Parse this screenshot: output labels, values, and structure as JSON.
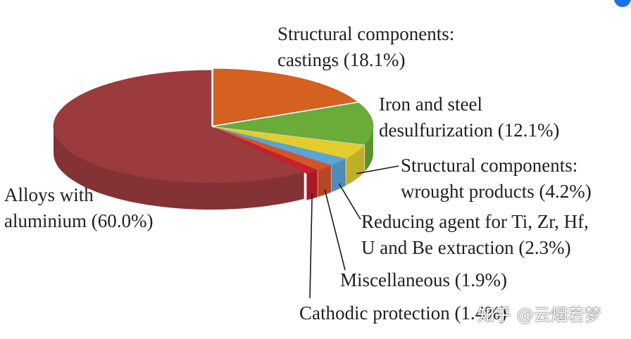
{
  "chart_data": {
    "type": "pie",
    "style": "3d-exploded",
    "title": "",
    "slices": [
      {
        "name": "Structural components: castings",
        "value": 18.1,
        "label_lines": [
          "Structural components:",
          "castings (18.1%)"
        ],
        "color": "#d4611f"
      },
      {
        "name": "Iron and steel desulfurization",
        "value": 12.1,
        "label_lines": [
          "Iron and steel",
          "desulfurization (12.1%)"
        ],
        "color": "#6aab3a"
      },
      {
        "name": "Structural components: wrought products",
        "value": 4.2,
        "label_lines": [
          "Structural components:",
          "wrought products (4.2%)"
        ],
        "color": "#e3cd2e"
      },
      {
        "name": "Reducing agent for Ti, Zr, Hf, U and Be extraction",
        "value": 2.3,
        "label_lines": [
          "Reducing agent for Ti, Zr, Hf,",
          "U and Be extraction (2.3%)"
        ],
        "color": "#5aa5d8"
      },
      {
        "name": "Miscellaneous",
        "value": 1.9,
        "label_lines": [
          "Miscellaneous (1.9%)"
        ],
        "color": "#d6532a"
      },
      {
        "name": "Cathodic protection",
        "value": 1.4,
        "label_lines": [
          "Cathodic protection (1.4%)"
        ],
        "color": "#c8202c"
      },
      {
        "name": "Alloys with aluminium",
        "value": 60.0,
        "label_lines": [
          "Alloys with",
          "aluminium (60.0%)"
        ],
        "color": "#9b3b3e"
      }
    ]
  },
  "watermark": "知乎 @云烟若梦"
}
